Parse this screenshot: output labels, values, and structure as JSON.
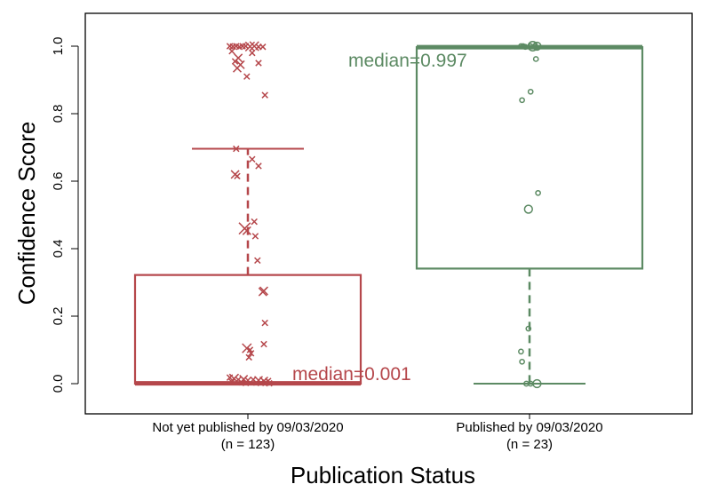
{
  "chart_data": {
    "type": "box",
    "xlabel": "Publication Status",
    "ylabel": "Confidence Score",
    "ylim": [
      -0.09,
      1.1
    ],
    "yticks": [
      "0.0",
      "0.2",
      "0.4",
      "0.6",
      "0.8",
      "1.0"
    ],
    "ytick_values": [
      0,
      0.2,
      0.4,
      0.6,
      0.8,
      1.0
    ],
    "grid": false,
    "groups": [
      {
        "label": "Not yet published by 09/03/2020",
        "n_label": "(n = 123)",
        "color": "#b5474b",
        "marker": "x",
        "median": 0.001,
        "median_label": "median=0.001",
        "q1": 0.0,
        "q3": 0.322,
        "whisker_low": 0.0,
        "whisker_high": 0.696,
        "points": [
          {
            "y": 1.0,
            "dx": -0.17,
            "s": 1.0
          },
          {
            "y": 0.999,
            "dx": -0.14,
            "s": 1.0
          },
          {
            "y": 1.0,
            "dx": -0.11,
            "s": 1.0
          },
          {
            "y": 0.998,
            "dx": -0.08,
            "s": 1.0
          },
          {
            "y": 1.0,
            "dx": -0.05,
            "s": 1.0
          },
          {
            "y": 1.0,
            "dx": -0.02,
            "s": 1.0
          },
          {
            "y": 0.999,
            "dx": 0.02,
            "s": 1.6
          },
          {
            "y": 1.0,
            "dx": 0.06,
            "s": 1.6
          },
          {
            "y": 0.998,
            "dx": 0.1,
            "s": 1.0
          },
          {
            "y": 0.998,
            "dx": 0.14,
            "s": 1.0
          },
          {
            "y": 0.985,
            "dx": -0.15,
            "s": 1.0
          },
          {
            "y": 0.98,
            "dx": 0.04,
            "s": 1.0
          },
          {
            "y": 0.965,
            "dx": -0.09,
            "s": 1.4
          },
          {
            "y": 0.955,
            "dx": -0.12,
            "s": 1.0
          },
          {
            "y": 0.95,
            "dx": 0.1,
            "s": 1.0
          },
          {
            "y": 0.945,
            "dx": -0.07,
            "s": 1.4
          },
          {
            "y": 0.935,
            "dx": -0.1,
            "s": 1.4
          },
          {
            "y": 0.91,
            "dx": -0.01,
            "s": 1.0
          },
          {
            "y": 0.855,
            "dx": 0.16,
            "s": 1.0
          },
          {
            "y": 0.696,
            "dx": -0.11,
            "s": 1.0
          },
          {
            "y": 0.665,
            "dx": 0.04,
            "s": 1.0
          },
          {
            "y": 0.645,
            "dx": 0.1,
            "s": 1.0
          },
          {
            "y": 0.62,
            "dx": -0.12,
            "s": 1.4
          },
          {
            "y": 0.615,
            "dx": -0.1,
            "s": 1.0
          },
          {
            "y": 0.48,
            "dx": 0.06,
            "s": 1.0
          },
          {
            "y": 0.46,
            "dx": -0.03,
            "s": 2.0
          },
          {
            "y": 0.453,
            "dx": -0.01,
            "s": 1.4
          },
          {
            "y": 0.437,
            "dx": 0.07,
            "s": 1.0
          },
          {
            "y": 0.365,
            "dx": 0.09,
            "s": 1.0
          },
          {
            "y": 0.275,
            "dx": 0.15,
            "s": 1.4
          },
          {
            "y": 0.272,
            "dx": 0.14,
            "s": 1.4
          },
          {
            "y": 0.18,
            "dx": 0.16,
            "s": 1.0
          },
          {
            "y": 0.117,
            "dx": 0.15,
            "s": 1.0
          },
          {
            "y": 0.105,
            "dx": -0.01,
            "s": 1.6
          },
          {
            "y": 0.1,
            "dx": 0.02,
            "s": 1.0
          },
          {
            "y": 0.09,
            "dx": 0.03,
            "s": 1.0
          },
          {
            "y": 0.078,
            "dx": 0.01,
            "s": 1.0
          },
          {
            "y": 0.018,
            "dx": -0.17,
            "s": 1.0
          },
          {
            "y": 0.015,
            "dx": -0.13,
            "s": 1.6
          },
          {
            "y": 0.012,
            "dx": -0.09,
            "s": 1.0
          },
          {
            "y": 0.013,
            "dx": -0.04,
            "s": 1.4
          },
          {
            "y": 0.01,
            "dx": 0.0,
            "s": 1.0
          },
          {
            "y": 0.012,
            "dx": 0.05,
            "s": 1.0
          },
          {
            "y": 0.01,
            "dx": 0.1,
            "s": 1.4
          },
          {
            "y": 0.008,
            "dx": 0.15,
            "s": 1.4
          },
          {
            "y": 0.008,
            "dx": 0.19,
            "s": 1.0
          },
          {
            "y": 0.005,
            "dx": -0.15,
            "s": 1.0
          },
          {
            "y": 0.004,
            "dx": -0.06,
            "s": 1.0
          },
          {
            "y": 0.003,
            "dx": 0.08,
            "s": 1.0
          },
          {
            "y": 0.003,
            "dx": 0.17,
            "s": 1.0
          },
          {
            "y": 0.002,
            "dx": -0.02,
            "s": 1.0
          },
          {
            "y": 0.002,
            "dx": 0.12,
            "s": 1.0
          },
          {
            "y": 0.001,
            "dx": 0.2,
            "s": 1.0
          }
        ]
      },
      {
        "label": "Published by 09/03/2020",
        "n_label": "(n = 23)",
        "color": "#5c8a63",
        "marker": "o",
        "median": 0.997,
        "median_label": "median=0.997",
        "q1": 0.341,
        "q3": 0.997,
        "whisker_low": 0.0,
        "whisker_high": 0.997,
        "points": [
          {
            "y": 1.0,
            "dx": 0.03,
            "s": 2.0
          },
          {
            "y": 1.0,
            "dx": 0.07,
            "s": 1.7
          },
          {
            "y": 1.0,
            "dx": -0.08,
            "s": 1.0
          },
          {
            "y": 1.0,
            "dx": -0.06,
            "s": 1.0
          },
          {
            "y": 1.0,
            "dx": 0.01,
            "s": 1.0
          },
          {
            "y": 0.998,
            "dx": -0.04,
            "s": 1.0
          },
          {
            "y": 0.999,
            "dx": 0.05,
            "s": 1.0
          },
          {
            "y": 0.962,
            "dx": 0.06,
            "s": 1.0
          },
          {
            "y": 0.865,
            "dx": 0.01,
            "s": 1.0
          },
          {
            "y": 0.84,
            "dx": -0.07,
            "s": 1.0
          },
          {
            "y": 0.565,
            "dx": 0.08,
            "s": 1.0
          },
          {
            "y": 0.517,
            "dx": -0.01,
            "s": 1.7
          },
          {
            "y": 0.163,
            "dx": -0.01,
            "s": 1.0
          },
          {
            "y": 0.095,
            "dx": -0.08,
            "s": 1.0
          },
          {
            "y": 0.065,
            "dx": -0.07,
            "s": 1.0
          },
          {
            "y": 0.0,
            "dx": -0.03,
            "s": 1.0
          },
          {
            "y": 0.0,
            "dx": 0.01,
            "s": 1.0
          },
          {
            "y": 0.0,
            "dx": 0.07,
            "s": 1.7
          }
        ]
      }
    ]
  }
}
